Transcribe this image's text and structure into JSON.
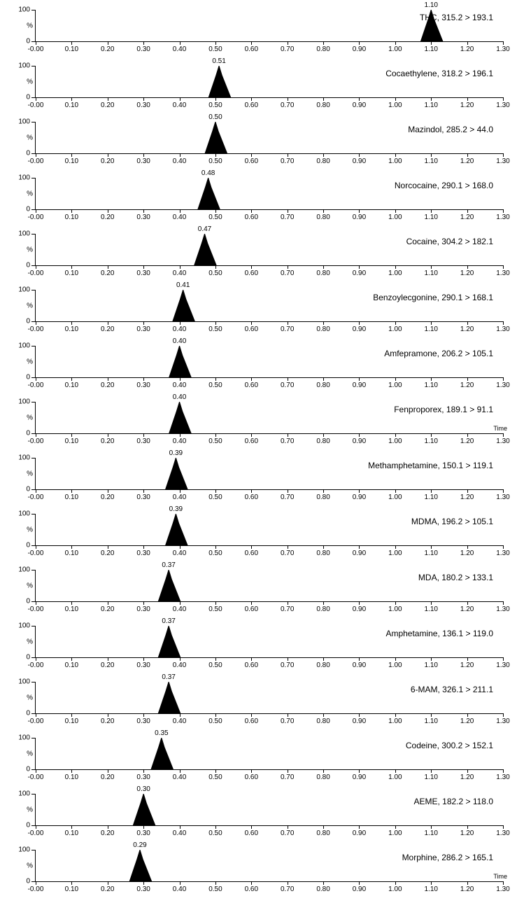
{
  "axis": {
    "xmin": -0.0,
    "xmax": 1.3,
    "xticks": [
      "-0.00",
      "0.10",
      "0.20",
      "0.30",
      "0.40",
      "0.50",
      "0.60",
      "0.70",
      "0.80",
      "0.90",
      "1.00",
      "1.10",
      "1.20",
      "1.30"
    ],
    "yticks": [
      0,
      100
    ],
    "ylabel": "%",
    "tick_font_size": 10,
    "label_font_size": 12,
    "axis_color": "#000000",
    "background_color": "#ffffff",
    "time_label": "Time",
    "show_time_label_indices": [
      7,
      15
    ]
  },
  "peak_style": {
    "fill": "#000000",
    "half_width_min": 0.018,
    "height_pct": 100
  },
  "chromatograms": [
    {
      "compound": "THC, 315.2 > 193.1",
      "rt": 1.1,
      "rt_label": "1.10"
    },
    {
      "compound": "Cocaethylene, 318.2 > 196.1",
      "rt": 0.51,
      "rt_label": "0.51"
    },
    {
      "compound": "Mazindol, 285.2 > 44.0",
      "rt": 0.5,
      "rt_label": "0.50"
    },
    {
      "compound": "Norcocaine, 290.1 > 168.0",
      "rt": 0.48,
      "rt_label": "0.48"
    },
    {
      "compound": "Cocaine, 304.2 > 182.1",
      "rt": 0.47,
      "rt_label": "0.47"
    },
    {
      "compound": "Benzoylecgonine, 290.1 > 168.1",
      "rt": 0.41,
      "rt_label": "0.41"
    },
    {
      "compound": "Amfepramone, 206.2 > 105.1",
      "rt": 0.4,
      "rt_label": "0.40"
    },
    {
      "compound": "Fenproporex, 189.1 > 91.1",
      "rt": 0.4,
      "rt_label": "0.40"
    },
    {
      "compound": "Methamphetamine, 150.1 > 119.1",
      "rt": 0.39,
      "rt_label": "0.39"
    },
    {
      "compound": "MDMA, 196.2 > 105.1",
      "rt": 0.39,
      "rt_label": "0.39"
    },
    {
      "compound": "MDA, 180.2 > 133.1",
      "rt": 0.37,
      "rt_label": "0.37"
    },
    {
      "compound": "Amphetamine, 136.1 > 119.0",
      "rt": 0.37,
      "rt_label": "0.37"
    },
    {
      "compound": "6-MAM, 326.1 > 211.1",
      "rt": 0.37,
      "rt_label": "0.37"
    },
    {
      "compound": "Codeine, 300.2 > 152.1",
      "rt": 0.35,
      "rt_label": "0.35"
    },
    {
      "compound": "AEME, 182.2 > 118.0",
      "rt": 0.3,
      "rt_label": "0.30"
    },
    {
      "compound": "Morphine, 286.2 > 165.1",
      "rt": 0.29,
      "rt_label": "0.29"
    }
  ]
}
